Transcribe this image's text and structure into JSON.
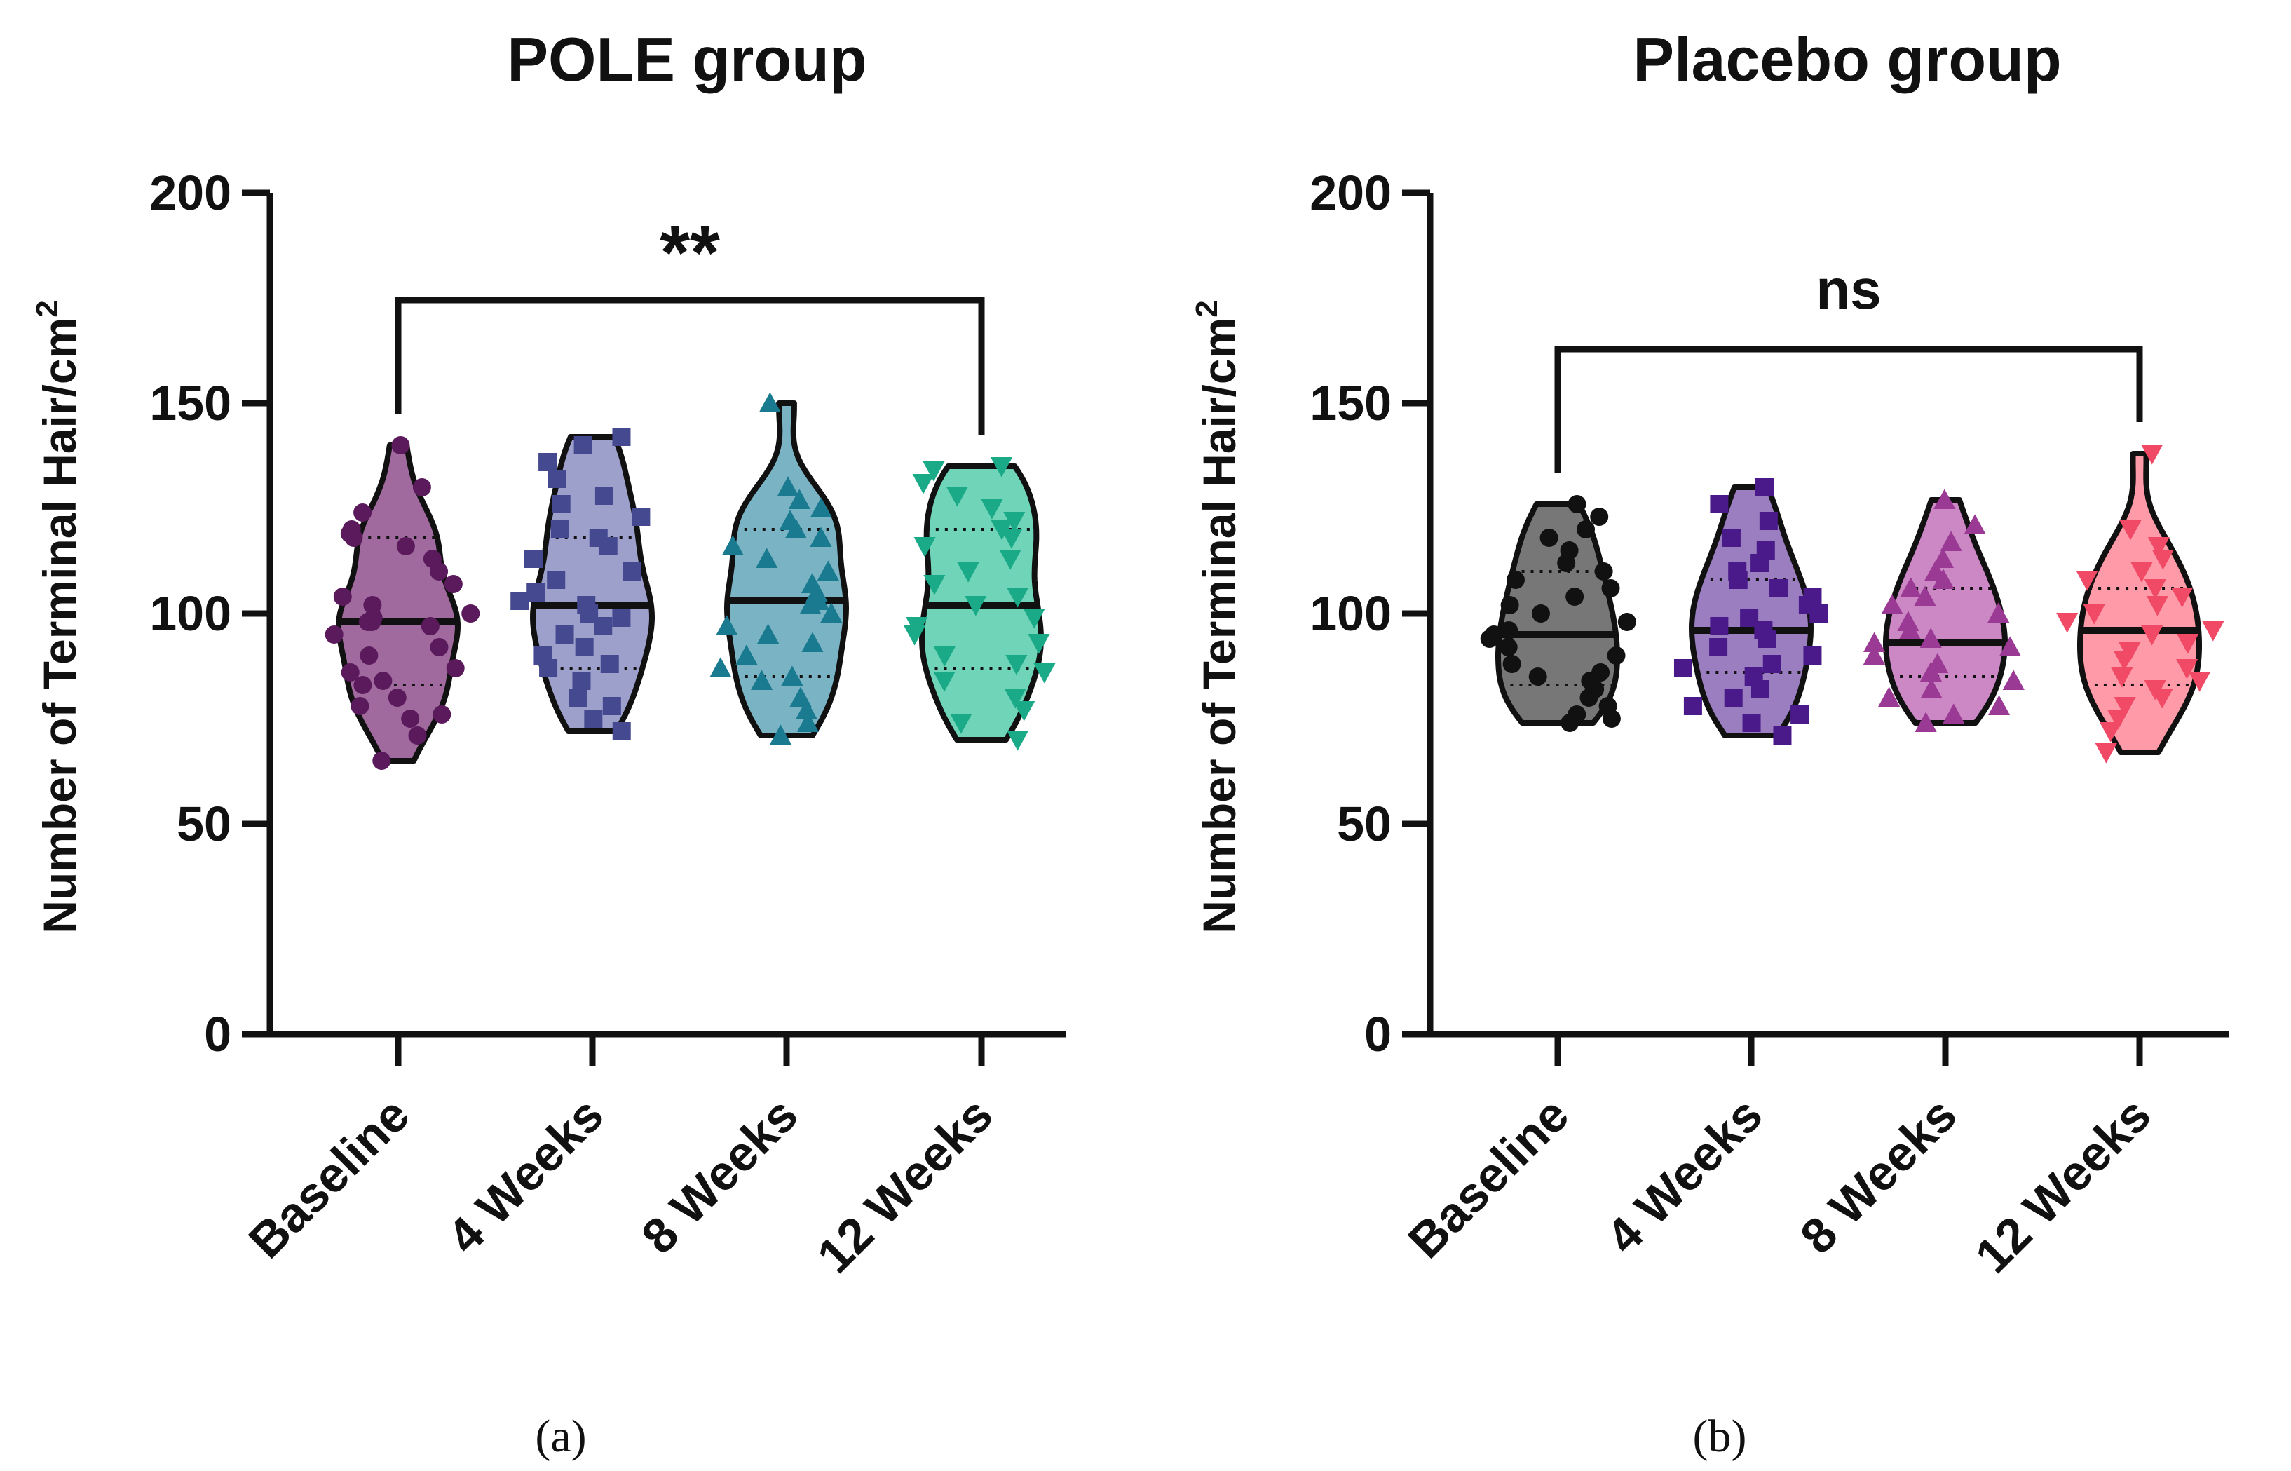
{
  "chart_data": [
    {
      "type": "violin",
      "title": "POLE group",
      "ylabel": "Number of Terminal Hair/cm",
      "ylabel_superscript": "2",
      "ylim": [
        0,
        200
      ],
      "yticks": [
        "0",
        "50",
        "100",
        "150",
        "200"
      ],
      "categories": [
        "Baseline",
        "4 Weeks",
        "8 Weeks",
        "12 Weeks"
      ],
      "significance": {
        "from": 0,
        "to": 3,
        "label": "**"
      },
      "panel_label": "(a)",
      "series": [
        {
          "name": "Baseline",
          "color": "#a06a9e",
          "point_color": "#5a1a5c",
          "marker": "circle",
          "min": 65,
          "max": 140,
          "median": 98,
          "q1": 83,
          "q3": 118,
          "points": [
            65,
            71,
            75,
            76,
            78,
            80,
            83,
            84,
            86,
            87,
            90,
            92,
            95,
            97,
            98,
            98,
            99,
            100,
            102,
            104,
            107,
            110,
            113,
            116,
            118,
            119,
            120,
            124,
            130,
            140
          ]
        },
        {
          "name": "4 Weeks",
          "color": "#9ea0cc",
          "point_color": "#454a90",
          "marker": "square",
          "min": 72,
          "max": 142,
          "median": 102,
          "q1": 87,
          "q3": 118,
          "points": [
            72,
            75,
            78,
            80,
            84,
            87,
            88,
            90,
            92,
            95,
            97,
            99,
            100,
            102,
            103,
            105,
            108,
            110,
            113,
            116,
            118,
            120,
            123,
            126,
            128,
            132,
            136,
            140,
            142
          ]
        },
        {
          "name": "8 Weeks",
          "color": "#7ab4c4",
          "point_color": "#1a7a90",
          "marker": "triangle-up",
          "min": 71,
          "max": 150,
          "median": 103,
          "q1": 85,
          "q3": 120,
          "points": [
            71,
            74,
            77,
            80,
            84,
            85,
            87,
            90,
            93,
            95,
            97,
            100,
            102,
            103,
            105,
            107,
            110,
            113,
            116,
            118,
            120,
            122,
            125,
            127,
            130,
            150
          ]
        },
        {
          "name": "12 Weeks",
          "color": "#6fd4b8",
          "point_color": "#1aaa88",
          "marker": "triangle-down",
          "min": 70,
          "max": 135,
          "median": 102,
          "q1": 87,
          "q3": 120,
          "points": [
            70,
            74,
            77,
            80,
            84,
            86,
            88,
            90,
            93,
            95,
            97,
            99,
            102,
            104,
            107,
            110,
            113,
            116,
            118,
            120,
            122,
            125,
            128,
            131,
            134,
            135
          ]
        }
      ]
    },
    {
      "type": "violin",
      "title": "Placebo group",
      "ylabel": "Number of Terminal Hair/cm",
      "ylabel_superscript": "2",
      "ylim": [
        0,
        200
      ],
      "yticks": [
        "0",
        "50",
        "100",
        "150",
        "200"
      ],
      "categories": [
        "Baseline",
        "4 Weeks",
        "8 Weeks",
        "12 Weeks"
      ],
      "significance": {
        "from": 0,
        "to": 3,
        "label": "ns"
      },
      "panel_label": "(b)",
      "series": [
        {
          "name": "Baseline",
          "color": "#777777",
          "point_color": "#111111",
          "marker": "circle",
          "min": 74,
          "max": 126,
          "median": 95,
          "q1": 83,
          "q3": 110,
          "points": [
            74,
            75,
            76,
            78,
            80,
            82,
            84,
            85,
            86,
            88,
            90,
            92,
            94,
            95,
            96,
            98,
            100,
            102,
            104,
            106,
            108,
            110,
            112,
            115,
            118,
            120,
            123,
            126
          ]
        },
        {
          "name": "4 Weeks",
          "color": "#9a7ec0",
          "point_color": "#4a1a8a",
          "marker": "square",
          "min": 71,
          "max": 130,
          "median": 96,
          "q1": 86,
          "q3": 108,
          "points": [
            71,
            74,
            76,
            78,
            80,
            82,
            85,
            87,
            88,
            90,
            92,
            94,
            96,
            97,
            99,
            100,
            102,
            104,
            106,
            108,
            110,
            112,
            115,
            118,
            122,
            126,
            130
          ]
        },
        {
          "name": "8 Weeks",
          "color": "#cc88c4",
          "point_color": "#9a3a94",
          "marker": "triangle-up",
          "min": 74,
          "max": 127,
          "median": 93,
          "q1": 85,
          "q3": 106,
          "points": [
            74,
            76,
            78,
            80,
            82,
            84,
            86,
            88,
            90,
            92,
            93,
            94,
            96,
            98,
            100,
            102,
            104,
            106,
            108,
            110,
            113,
            117,
            121,
            127
          ]
        },
        {
          "name": "12 Weeks",
          "color": "#ff9aa8",
          "point_color": "#f04a66",
          "marker": "triangle-down",
          "min": 67,
          "max": 138,
          "median": 96,
          "q1": 83,
          "q3": 106,
          "points": [
            67,
            72,
            75,
            78,
            80,
            82,
            84,
            85,
            87,
            89,
            91,
            93,
            95,
            96,
            98,
            100,
            102,
            104,
            106,
            108,
            110,
            113,
            116,
            120,
            138
          ]
        }
      ]
    }
  ]
}
